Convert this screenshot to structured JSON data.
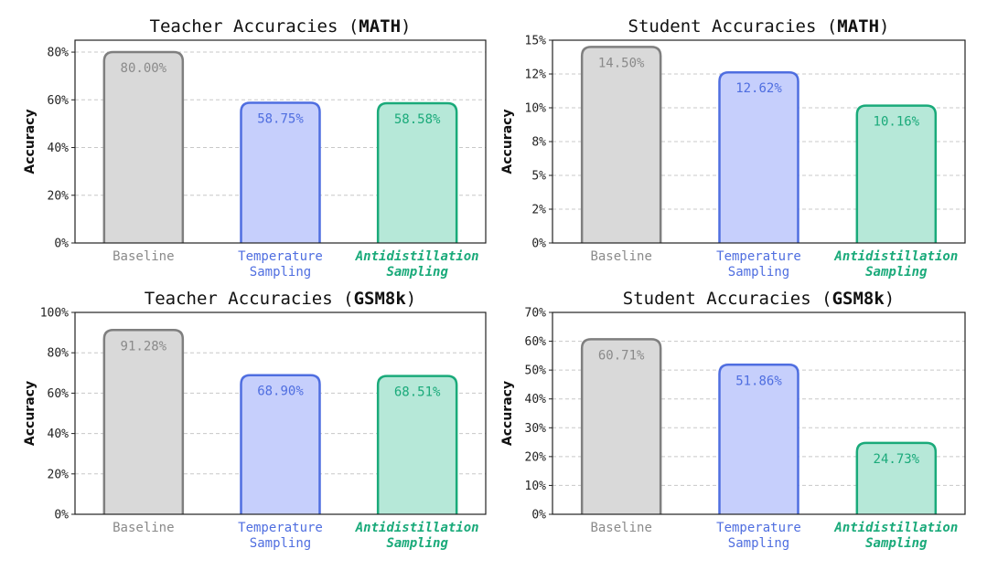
{
  "colors": {
    "baseline_fill": "#d9d9d9",
    "baseline_edge": "#7f7f7f",
    "baseline_text": "#8a8a8a",
    "temperature_fill": "#c6cffc",
    "temperature_edge": "#4f6ee0",
    "temperature_text": "#4f6ee0",
    "antidistill_fill": "#b6e8d8",
    "antidistill_edge": "#1aaa7a",
    "antidistill_text": "#1aaa7a"
  },
  "chart_data": [
    {
      "type": "bar",
      "title": "Teacher Accuracies (",
      "title_bold": "MATH",
      "title_end": ")",
      "ylabel": "Accuracy",
      "ylim": [
        0,
        85
      ],
      "yticks": [
        0,
        20,
        40,
        60,
        80
      ],
      "ytick_labels": [
        "0%",
        "20%",
        "40%",
        "60%",
        "80%"
      ],
      "categories": [
        "Baseline",
        "Temperature Sampling",
        "Antidistillation Sampling"
      ],
      "values": [
        80.0,
        58.75,
        58.58
      ],
      "value_labels": [
        "80.00%",
        "58.75%",
        "58.58%"
      ],
      "grid": true
    },
    {
      "type": "bar",
      "title": "Student Accuracies (",
      "title_bold": "MATH",
      "title_end": ")",
      "ylabel": "Accuracy",
      "ylim": [
        0,
        15
      ],
      "yticks": [
        0,
        2.5,
        5,
        7.5,
        10,
        12.5,
        15
      ],
      "ytick_labels": [
        "0%",
        "2%",
        "5%",
        "8%",
        "10%",
        "12%",
        "15%"
      ],
      "categories": [
        "Baseline",
        "Temperature Sampling",
        "Antidistillation Sampling"
      ],
      "values": [
        14.5,
        12.62,
        10.16
      ],
      "value_labels": [
        "14.50%",
        "12.62%",
        "10.16%"
      ],
      "grid": true
    },
    {
      "type": "bar",
      "title": "Teacher Accuracies (",
      "title_bold": "GSM8k",
      "title_end": ")",
      "ylabel": "Accuracy",
      "ylim": [
        0,
        100
      ],
      "yticks": [
        0,
        20,
        40,
        60,
        80,
        100
      ],
      "ytick_labels": [
        "0%",
        "20%",
        "40%",
        "60%",
        "80%",
        "100%"
      ],
      "categories": [
        "Baseline",
        "Temperature Sampling",
        "Antidistillation Sampling"
      ],
      "values": [
        91.28,
        68.9,
        68.51
      ],
      "value_labels": [
        "91.28%",
        "68.90%",
        "68.51%"
      ],
      "grid": true
    },
    {
      "type": "bar",
      "title": "Student Accuracies (",
      "title_bold": "GSM8k",
      "title_end": ")",
      "ylabel": "Accuracy",
      "ylim": [
        0,
        70
      ],
      "yticks": [
        0,
        10,
        20,
        30,
        40,
        50,
        60,
        70
      ],
      "ytick_labels": [
        "0%",
        "10%",
        "20%",
        "30%",
        "40%",
        "50%",
        "60%",
        "70%"
      ],
      "categories": [
        "Baseline",
        "Temperature Sampling",
        "Antidistillation Sampling"
      ],
      "values": [
        60.71,
        51.86,
        24.73
      ],
      "value_labels": [
        "60.71%",
        "51.86%",
        "24.73%"
      ],
      "grid": true
    }
  ]
}
